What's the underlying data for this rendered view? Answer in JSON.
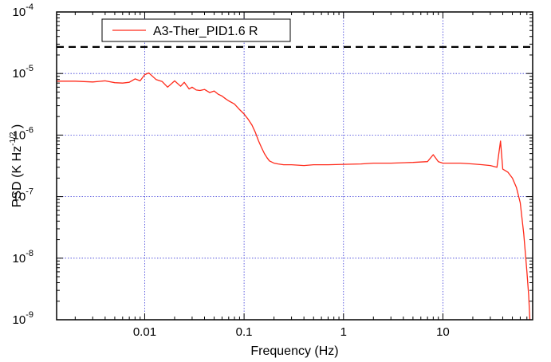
{
  "chart_data": {
    "type": "line",
    "xlabel": "Frequency (Hz)",
    "ylabel": {
      "prefix": "PSD (K Hz",
      "superscript": "-1/2",
      "suffix": " )"
    },
    "xscale": "log",
    "yscale": "log",
    "xlim": [
      0.0013,
      80
    ],
    "ylim": [
      1e-09,
      0.0001
    ],
    "grid": true,
    "legend_position": "top-left",
    "x_ticks": [
      {
        "value": 0.01,
        "label": "0.01"
      },
      {
        "value": 0.1,
        "label": "0.1"
      },
      {
        "value": 1,
        "label": "1"
      },
      {
        "value": 10,
        "label": "10"
      }
    ],
    "y_ticks": [
      {
        "value": 1e-09,
        "base": "10",
        "exp": "-9"
      },
      {
        "value": 1e-08,
        "base": "10",
        "exp": "-8"
      },
      {
        "value": 1e-07,
        "base": "10",
        "exp": "-7"
      },
      {
        "value": 1e-06,
        "base": "10",
        "exp": "-6"
      },
      {
        "value": 1e-05,
        "base": "10",
        "exp": "-5"
      },
      {
        "value": 0.0001,
        "base": "10",
        "exp": "-4"
      }
    ],
    "series": [
      {
        "name": "A3-Ther_PID1.6 R",
        "color": "#ff2a1a",
        "x": [
          0.0013,
          0.002,
          0.003,
          0.004,
          0.005,
          0.006,
          0.007,
          0.008,
          0.009,
          0.01,
          0.011,
          0.012,
          0.013,
          0.015,
          0.017,
          0.02,
          0.023,
          0.025,
          0.028,
          0.03,
          0.033,
          0.036,
          0.04,
          0.045,
          0.05,
          0.055,
          0.06,
          0.065,
          0.07,
          0.08,
          0.09,
          0.1,
          0.11,
          0.12,
          0.13,
          0.14,
          0.15,
          0.16,
          0.17,
          0.18,
          0.2,
          0.22,
          0.25,
          0.3,
          0.4,
          0.5,
          0.7,
          1,
          1.5,
          2,
          3,
          5,
          7,
          8,
          9,
          10,
          15,
          20,
          25,
          30,
          35,
          38,
          40,
          45,
          50,
          55,
          60,
          65,
          70,
          73,
          75
        ],
        "y": [
          7.5e-06,
          7.5e-06,
          7.3e-06,
          7.6e-06,
          7.1e-06,
          7e-06,
          7.2e-06,
          8.2e-06,
          7.6e-06,
          9.6e-06,
          1.02e-05,
          9e-06,
          8e-06,
          7.4e-06,
          6e-06,
          7.6e-06,
          6.2e-06,
          7.2e-06,
          5.6e-06,
          6e-06,
          5.4e-06,
          5.3e-06,
          5.5e-06,
          4.9e-06,
          5.2e-06,
          4.6e-06,
          4.3e-06,
          3.9e-06,
          3.6e-06,
          3.2e-06,
          2.6e-06,
          2.2e-06,
          1.8e-06,
          1.45e-06,
          1.1e-06,
          8e-07,
          6.2e-07,
          5e-07,
          4.3e-07,
          3.8e-07,
          3.5e-07,
          3.4e-07,
          3.3e-07,
          3.3e-07,
          3.2e-07,
          3.3e-07,
          3.3e-07,
          3.35e-07,
          3.4e-07,
          3.5e-07,
          3.5e-07,
          3.6e-07,
          3.7e-07,
          4.8e-07,
          3.7e-07,
          3.5e-07,
          3.5e-07,
          3.4e-07,
          3.3e-07,
          3.2e-07,
          3e-07,
          8e-07,
          2.8e-07,
          2.5e-07,
          2e-07,
          1.4e-07,
          8e-08,
          2.5e-08,
          6e-09,
          2.5e-09,
          1e-09
        ]
      }
    ],
    "threshold": {
      "value": 2.7e-05,
      "style": "dashed",
      "color": "#000000"
    }
  }
}
